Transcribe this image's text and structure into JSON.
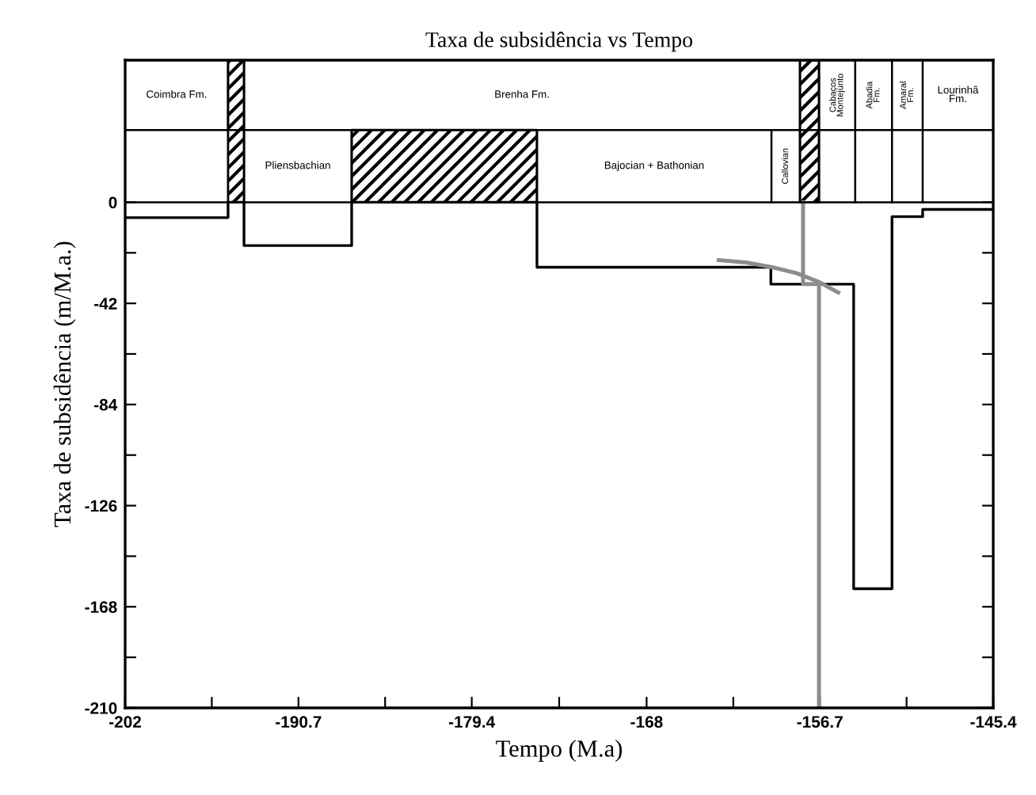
{
  "chart_data": {
    "type": "step",
    "title": "Taxa de subsidência vs Tempo",
    "xlabel": "Tempo (M.a)",
    "ylabel": "Taxa de subsidência (m/M.a.)",
    "xlim": [
      -202,
      -145.4
    ],
    "ylim": [
      -210,
      59
    ],
    "xticks": [
      -202,
      {
        "value": -196.35,
        "label": null
      },
      -190.7,
      {
        "value": -185.05,
        "label": null
      },
      -179.4,
      {
        "value": -173.7,
        "label": null
      },
      -168,
      {
        "value": -162.35,
        "label": null
      },
      -156.7,
      {
        "value": -151.05,
        "label": null
      },
      -145.4
    ],
    "yticks": [
      0,
      {
        "value": -21,
        "label": null
      },
      -42,
      {
        "value": -63,
        "label": null
      },
      -84,
      {
        "value": -105,
        "label": null
      },
      -126,
      {
        "value": -147,
        "label": null
      },
      -168,
      {
        "value": -189,
        "label": null
      },
      -210
    ],
    "grid": false,
    "legend": false,
    "marker": "none",
    "line_style": "solid",
    "series": [
      {
        "color": "#000000",
        "x": [
          -202,
          -195.29,
          -194.25,
          -187.23,
          -175.15,
          -159.9,
          -157.7,
          -156.76,
          -154.5,
          -152.0,
          -150.0,
          -145.4
        ],
        "values": [
          -6.4,
          0,
          -18,
          0,
          -27,
          -34,
          null,
          -34,
          -160.5,
          -6,
          -3,
          -3
        ]
      },
      {
        "type": "line",
        "color": "#8c8c8c",
        "x": [
          -157.8,
          -157.8,
          -156.76,
          -156.76
        ],
        "values": [
          0,
          -34,
          -34,
          -210
        ]
      },
      {
        "type": "line",
        "color": "#8c8c8c",
        "x": [
          -163.3,
          -161.5,
          -159.8,
          -158.2,
          -156.8,
          -155.5
        ],
        "values": [
          -24,
          -25,
          -27,
          -29.5,
          -33,
          -37.5
        ]
      }
    ],
    "ref_lines": [
      {
        "axis": "y",
        "value": 0,
        "color": "#000000"
      },
      {
        "axis": "y",
        "value": 30,
        "color": "#000000"
      }
    ],
    "bands": [
      {
        "axis": "x",
        "from": -195.29,
        "to": -194.25,
        "color": "#000000"
      },
      {
        "axis": "x",
        "from": -187.23,
        "to": -175.15,
        "color": "#000000"
      },
      {
        "axis": "x",
        "from": -158.0,
        "to": -156.76,
        "color": "#000000"
      }
    ],
    "annotations": [
      "Coimbra Fm.",
      "Brenha Fm.",
      "Pliensbachian",
      "Bajocian + Bathonian",
      "Callovian",
      "Cabaços\nMontejunto",
      "Abadia\nFm.",
      "Amaral\nFm.",
      "Lourinhã\nFm."
    ]
  }
}
